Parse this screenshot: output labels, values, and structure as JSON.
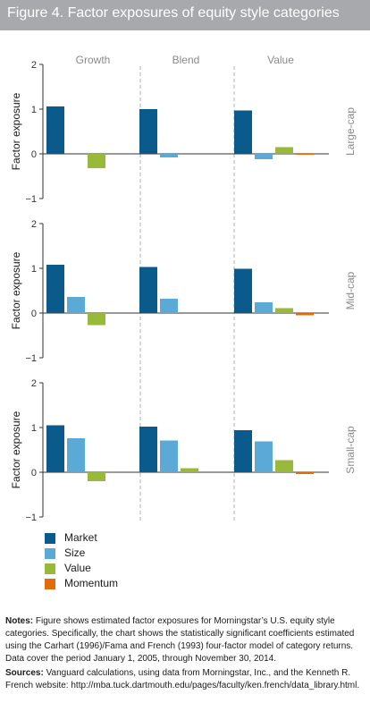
{
  "page_title": "Figure 4. Factor exposures of equity style categories",
  "colors": {
    "title_bar": "#a7a9ac",
    "market": "#0a5a8c",
    "size": "#5aa9d6",
    "value": "#98b93a",
    "momentum": "#e36c0a",
    "axis": "#333333",
    "divider": "#b0b0b0",
    "muted_text": "#8a8a8a"
  },
  "chart_data": {
    "type": "bar",
    "title": "Figure 4. Factor exposures of equity style categories",
    "ylabel": "Factor exposure",
    "ylim": [
      -1,
      2
    ],
    "yticks": [
      "2",
      "1",
      "0",
      "−1"
    ],
    "columns": [
      "Growth",
      "Blend",
      "Value"
    ],
    "legend": {
      "placement": "bottom-left",
      "entries": [
        "Market",
        "Size",
        "Value",
        "Momentum"
      ]
    },
    "grid": false,
    "panels": [
      {
        "row_label": "Large-cap",
        "groups": [
          {
            "column": "Growth",
            "values": [
              1.06,
              0,
              -0.32,
              0
            ]
          },
          {
            "column": "Blend",
            "values": [
              1.0,
              -0.08,
              0,
              0
            ]
          },
          {
            "column": "Value",
            "values": [
              0.97,
              -0.12,
              0.15,
              -0.02
            ]
          }
        ]
      },
      {
        "row_label": "Mid-cap",
        "groups": [
          {
            "column": "Growth",
            "values": [
              1.08,
              0.36,
              -0.27,
              0
            ]
          },
          {
            "column": "Blend",
            "values": [
              1.03,
              0.32,
              0,
              0
            ]
          },
          {
            "column": "Value",
            "values": [
              0.99,
              0.24,
              0.11,
              -0.05
            ]
          }
        ]
      },
      {
        "row_label": "Small-cap",
        "groups": [
          {
            "column": "Growth",
            "values": [
              1.05,
              0.76,
              -0.2,
              0
            ]
          },
          {
            "column": "Blend",
            "values": [
              1.02,
              0.71,
              0.09,
              0
            ]
          },
          {
            "column": "Value",
            "values": [
              0.94,
              0.69,
              0.27,
              -0.04
            ]
          }
        ]
      }
    ]
  },
  "notes": {
    "label": "Notes:",
    "text": " Figure shows estimated factor exposures for Morningstar’s U.S. equity style categories. Specifically, the chart shows the statistically significant coefficients estimated using the Carhart (1996)/Fama and French (1993) four-factor model of category returns. Data cover the period January 1, 2005, through November 30, 2014."
  },
  "sources": {
    "label": "Sources:",
    "text": " Vanguard calculations, using data from Morningstar, Inc., and the Kenneth R. French website: http://mba.tuck.dartmouth.edu/pages/faculty/ken.french/data_library.html."
  }
}
